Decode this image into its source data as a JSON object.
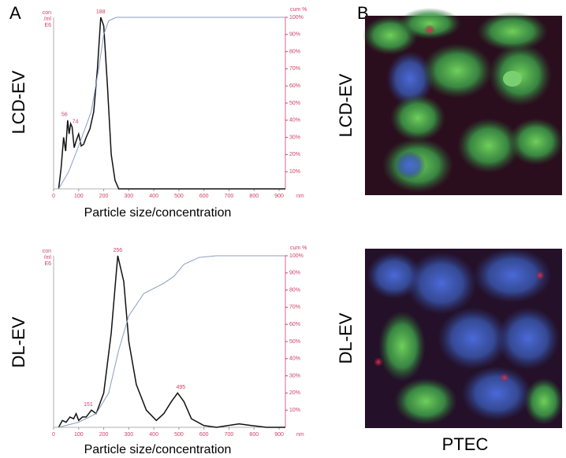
{
  "panels": {
    "a": "A",
    "b": "B"
  },
  "chart_data": [
    {
      "type": "line",
      "row_label": "LCD-EV",
      "xlabel": "Particle size/concentration",
      "xunit": "nm",
      "ylabel": [
        "con",
        "/ml",
        "E6"
      ],
      "y2label": "cum %",
      "xlim": [
        0,
        925
      ],
      "xticks": [
        0,
        100,
        200,
        300,
        400,
        500,
        600,
        700,
        800,
        900
      ],
      "ylim": [
        0,
        100
      ],
      "y2lim": [
        0,
        100
      ],
      "y2ticks": [
        {
          "value": 10,
          "label": "10%"
        },
        {
          "value": 20,
          "label": "20%"
        },
        {
          "value": 30,
          "label": "30%"
        },
        {
          "value": 40,
          "label": "40%"
        },
        {
          "value": 50,
          "label": "50%"
        },
        {
          "value": 60,
          "label": "60%"
        },
        {
          "value": 70,
          "label": "70%"
        },
        {
          "value": 80,
          "label": "80%"
        },
        {
          "value": 90,
          "label": "90%"
        },
        {
          "value": 100,
          "label": "100%"
        }
      ],
      "peaks": [
        188,
        56,
        74
      ],
      "series": [
        {
          "color": "#111111",
          "x": [
            20,
            30,
            40,
            48,
            56,
            62,
            68,
            74,
            82,
            90,
            100,
            110,
            120,
            130,
            145,
            160,
            175,
            188,
            200,
            215,
            230,
            245,
            260,
            925
          ],
          "values": [
            0,
            12,
            30,
            22,
            40,
            32,
            38,
            36,
            24,
            28,
            32,
            25,
            26,
            30,
            35,
            45,
            70,
            100,
            95,
            60,
            20,
            5,
            0,
            0
          ]
        },
        {
          "color": "#8c9cc0",
          "axis": "y2",
          "x": [
            20,
            60,
            100,
            150,
            180,
            200,
            220,
            250,
            925
          ],
          "values": [
            0,
            10,
            25,
            45,
            70,
            90,
            98,
            100,
            100
          ]
        }
      ]
    },
    {
      "type": "line",
      "row_label": "DL-EV",
      "xlabel": "Particle size/concentration",
      "xunit": "nm",
      "ylabel": [
        "con",
        "/ml",
        "E6"
      ],
      "y2label": "cum %",
      "xlim": [
        0,
        925
      ],
      "xticks": [
        0,
        100,
        200,
        300,
        400,
        500,
        600,
        700,
        800,
        900
      ],
      "ylim": [
        0,
        100
      ],
      "y2lim": [
        0,
        100
      ],
      "y2ticks": [
        {
          "value": 10,
          "label": "10%"
        },
        {
          "value": 20,
          "label": "20%"
        },
        {
          "value": 30,
          "label": "30%"
        },
        {
          "value": 40,
          "label": "40%"
        },
        {
          "value": 50,
          "label": "50%"
        },
        {
          "value": 60,
          "label": "60%"
        },
        {
          "value": 70,
          "label": "70%"
        },
        {
          "value": 80,
          "label": "80%"
        },
        {
          "value": 90,
          "label": "90%"
        },
        {
          "value": 100,
          "label": "100%"
        }
      ],
      "peaks": [
        256,
        151,
        495
      ],
      "series": [
        {
          "color": "#111111",
          "x": [
            20,
            35,
            50,
            65,
            80,
            90,
            100,
            115,
            130,
            151,
            170,
            200,
            230,
            250,
            256,
            280,
            300,
            330,
            370,
            410,
            440,
            470,
            495,
            520,
            550,
            600,
            650,
            740,
            790,
            850,
            925
          ],
          "values": [
            0,
            4,
            3,
            6,
            5,
            8,
            4,
            6,
            6,
            10,
            8,
            20,
            55,
            90,
            100,
            85,
            50,
            25,
            10,
            4,
            8,
            15,
            20,
            15,
            5,
            1,
            0,
            2,
            1,
            0,
            0
          ]
        },
        {
          "color": "#8c9cc0",
          "axis": "y2",
          "x": [
            20,
            100,
            170,
            220,
            260,
            300,
            360,
            440,
            480,
            520,
            580,
            650,
            925
          ],
          "values": [
            0,
            3,
            8,
            20,
            45,
            65,
            78,
            84,
            88,
            95,
            99,
            100,
            100
          ]
        }
      ]
    }
  ],
  "images": {
    "row_labels": [
      "LCD-EV",
      "DL-EV"
    ],
    "caption": "PTEC"
  }
}
